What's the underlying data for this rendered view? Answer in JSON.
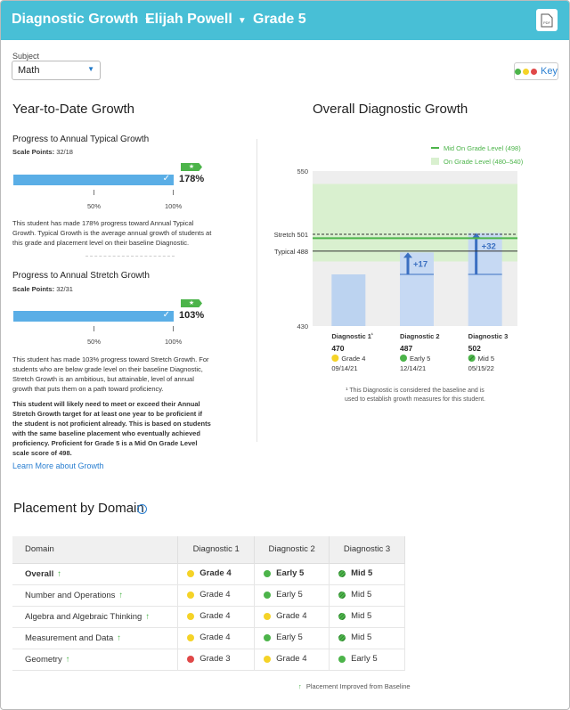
{
  "header": {
    "report": "Diagnostic Growth",
    "student": "Elijah Powell",
    "grade": "Grade 5",
    "pdf_label": "PDF"
  },
  "subject": {
    "label": "Subject",
    "value": "Math"
  },
  "key_label": "Key",
  "ytd": {
    "title": "Year-to-Date Growth",
    "typical": {
      "title": "Progress to Annual Typical Growth",
      "scale_label": "Scale Points:",
      "scale_value": "32/18",
      "percent": "178%",
      "percent_value": 1.78,
      "tick50": "50%",
      "tick100": "100%",
      "desc": "This student has made 178% progress toward Annual Typical Growth. Typical Growth is the average annual growth of students at this grade and placement level on their baseline Diagnostic."
    },
    "stretch": {
      "title": "Progress to Annual Stretch Growth",
      "scale_label": "Scale Points:",
      "scale_value": "32/31",
      "percent": "103%",
      "percent_value": 1.03,
      "tick50": "50%",
      "tick100": "100%",
      "desc": "This student has made 103% progress toward Stretch Growth. For students who are below grade level on their baseline Diagnostic, Stretch Growth is an ambitious, but attainable, level of annual growth that puts them on a path toward proficiency.",
      "note": "This student will likely need to meet or exceed their Annual Stretch Growth target for at least one year to be proficient if the student is not proficient already. This is based on students with the same baseline placement who eventually achieved proficiency. Proficient for Grade 5 is a Mid On Grade Level scale score of 498."
    },
    "link": "Learn More about Growth"
  },
  "chart_data": {
    "type": "bar",
    "title": "Overall Diagnostic Growth",
    "ylim": [
      430,
      550
    ],
    "y_ticks": [
      "550",
      "430"
    ],
    "legend": [
      "Mid On Grade Level (498)",
      "On Grade Level (480–540)"
    ],
    "band": [
      480,
      540
    ],
    "mid_line": 498,
    "stretch": {
      "label": "Stretch 501",
      "value": 501
    },
    "typical": {
      "label": "Typical 488",
      "value": 488
    },
    "baseline": 470,
    "categories": [
      "Diagnostic 1",
      "Diagnostic 2",
      "Diagnostic 3"
    ],
    "category_marks": [
      "¹",
      "",
      ""
    ],
    "values": [
      470,
      487,
      502
    ],
    "gains": [
      "",
      "+17",
      "+32"
    ],
    "placements": [
      "Grade 4",
      "Early 5",
      "Mid 5"
    ],
    "placement_colors": [
      "#f5d327",
      "#4cb44a",
      "#4cb44a"
    ],
    "dates": [
      "09/14/21",
      "12/14/21",
      "05/15/22"
    ],
    "footnote": "¹ This Diagnostic is considered the baseline and is used to establish growth measures for this student."
  },
  "domain": {
    "title": "Placement by Domain",
    "columns": [
      "Domain",
      "Diagnostic 1",
      "Diagnostic 2",
      "Diagnostic 3"
    ],
    "rows": [
      {
        "name": "Overall",
        "bold": true,
        "cells": [
          {
            "text": "Grade 4",
            "color": "yellow"
          },
          {
            "text": "Early 5",
            "color": "green"
          },
          {
            "text": "Mid 5",
            "color": "green-striped"
          }
        ]
      },
      {
        "name": "Number and Operations",
        "cells": [
          {
            "text": "Grade 4",
            "color": "yellow"
          },
          {
            "text": "Early 5",
            "color": "green"
          },
          {
            "text": "Mid 5",
            "color": "green-striped"
          }
        ]
      },
      {
        "name": "Algebra and Algebraic Thinking",
        "cells": [
          {
            "text": "Grade 4",
            "color": "yellow"
          },
          {
            "text": "Grade 4",
            "color": "yellow"
          },
          {
            "text": "Mid 5",
            "color": "green-striped"
          }
        ]
      },
      {
        "name": "Measurement and Data",
        "cells": [
          {
            "text": "Grade 4",
            "color": "yellow"
          },
          {
            "text": "Early 5",
            "color": "green"
          },
          {
            "text": "Mid 5",
            "color": "green-striped"
          }
        ]
      },
      {
        "name": "Geometry",
        "cells": [
          {
            "text": "Grade 3",
            "color": "red"
          },
          {
            "text": "Grade 4",
            "color": "yellow"
          },
          {
            "text": "Early 5",
            "color": "green"
          }
        ]
      }
    ],
    "footer_note": "Placement Improved from Baseline"
  },
  "colors": {
    "header": "#48bfd6",
    "bar": "#5aaee6",
    "green": "#4cb44a",
    "yellow": "#f5d327",
    "red": "#e04848",
    "band": "#d9f0cf"
  }
}
